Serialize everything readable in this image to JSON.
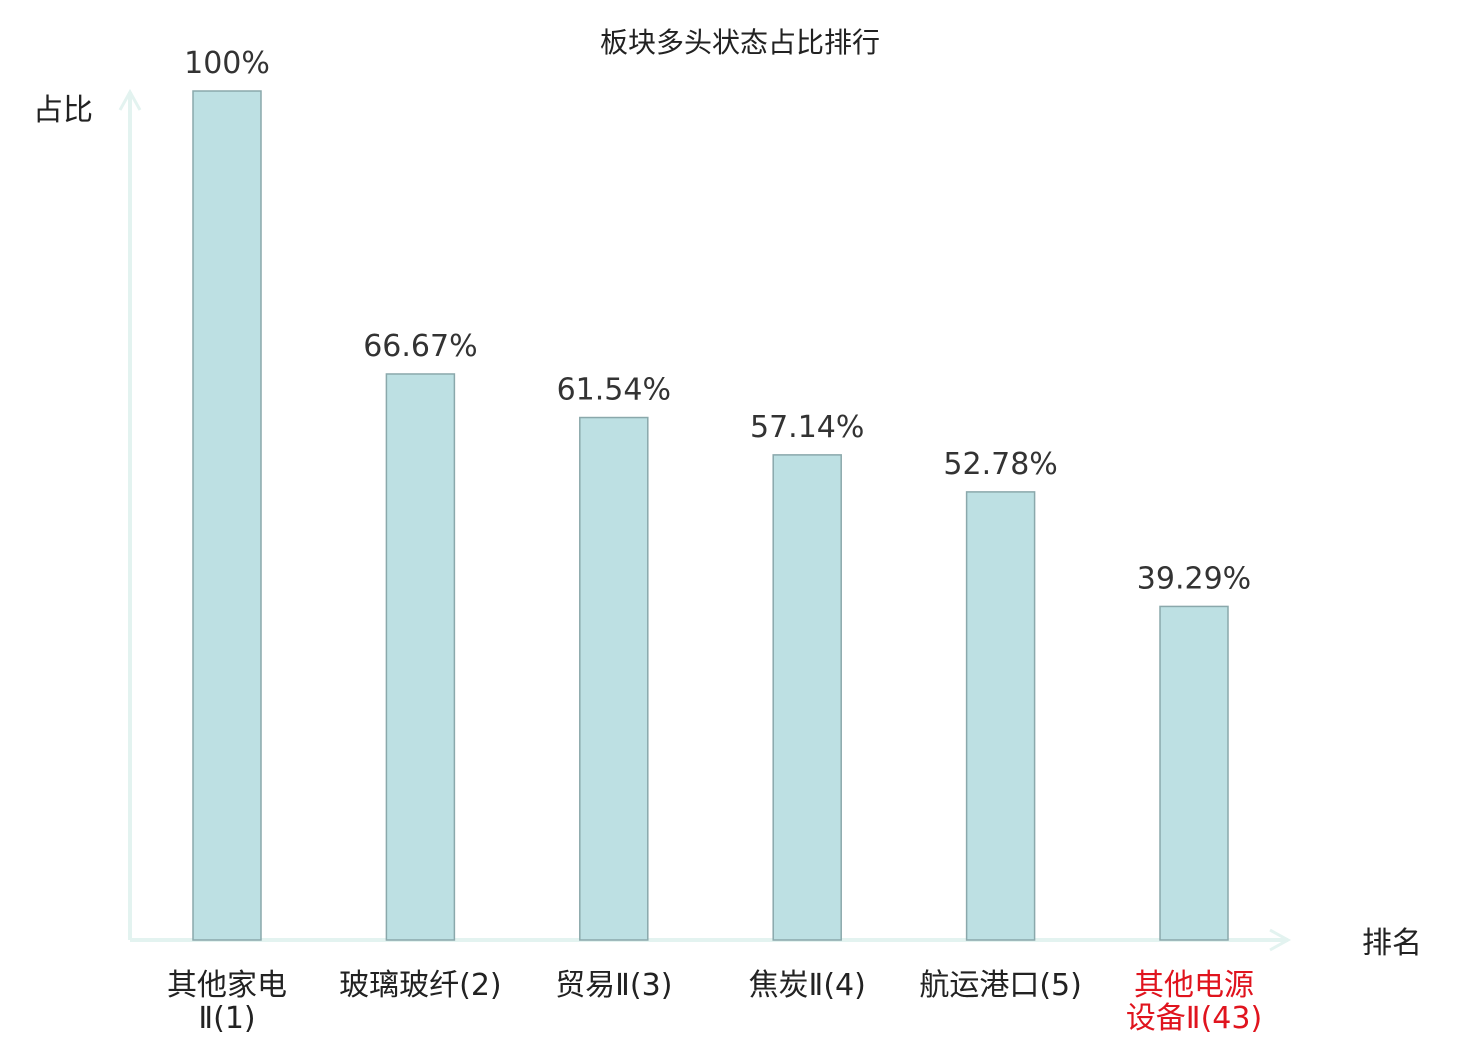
{
  "chart_data": {
    "type": "bar",
    "title": "板块多头状态占比排行",
    "ylabel": "占比",
    "xlabel": "排名",
    "ylim": [
      0,
      100
    ],
    "categories": [
      [
        "其他家电",
        "Ⅱ(1)"
      ],
      [
        "玻璃玻纤(2)"
      ],
      [
        "贸易Ⅱ(3)"
      ],
      [
        "焦炭Ⅱ(4)"
      ],
      [
        "航运港口(5)"
      ],
      [
        "其他电源",
        "设备Ⅱ(43)"
      ]
    ],
    "values": [
      100,
      66.67,
      61.54,
      57.14,
      52.78,
      39.29
    ],
    "value_labels": [
      "100%",
      "66.67%",
      "61.54%",
      "57.14%",
      "52.78%",
      "39.29%"
    ],
    "highlight_index": 5,
    "grid": false,
    "colors": {
      "bar_fill": "#bde0e3",
      "bar_stroke": "#8aa8ab",
      "axis": "#e3f3f0",
      "label_default": "#222222",
      "label_highlight": "#e0141e"
    }
  }
}
